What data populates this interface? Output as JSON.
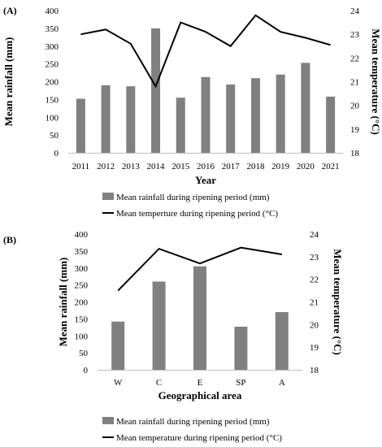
{
  "chart_data": [
    {
      "panel_label": "(A)",
      "type": "bar+line",
      "xlabel": "Year",
      "ylabel_left": "Mean rainfall (mm)",
      "ylabel_right": "Mean temperature (°C)",
      "categories": [
        "2011",
        "2012",
        "2013",
        "2014",
        "2015",
        "2016",
        "2017",
        "2018",
        "2019",
        "2020",
        "2021"
      ],
      "ylim_left": [
        0,
        400
      ],
      "yticks_left": [
        0,
        50,
        100,
        150,
        200,
        250,
        300,
        350,
        400
      ],
      "ylim_right": [
        18,
        24
      ],
      "yticks_right": [
        18,
        19,
        20,
        21,
        22,
        23,
        24
      ],
      "series": [
        {
          "name": "Mean rainfall during ripening period (mm)",
          "kind": "bar",
          "axis": "left",
          "color": "#808080",
          "values": [
            152,
            190,
            187,
            350,
            155,
            213,
            192,
            210,
            220,
            253,
            158
          ]
        },
        {
          "name": "Mean temperture during ripening period (°C)",
          "kind": "line",
          "axis": "right",
          "color": "#000000",
          "values": [
            23.0,
            23.2,
            22.6,
            20.8,
            23.5,
            23.1,
            22.5,
            23.8,
            23.1,
            22.85,
            22.55
          ]
        }
      ],
      "grid": false,
      "legend_placement": "bottom"
    },
    {
      "panel_label": "(B)",
      "type": "bar+line",
      "xlabel": "Geographical area",
      "ylabel_left": "Mean rainfall (mm)",
      "ylabel_right": "Mean temperature (°C)",
      "categories": [
        "W",
        "C",
        "E",
        "SP",
        "A"
      ],
      "ylim_left": [
        0,
        400
      ],
      "yticks_left": [
        0,
        50,
        100,
        150,
        200,
        250,
        300,
        350,
        400
      ],
      "ylim_right": [
        18,
        24
      ],
      "yticks_right": [
        18,
        19,
        20,
        21,
        22,
        23,
        24
      ],
      "series": [
        {
          "name": "Mean rainfall during ripening period (mm)",
          "kind": "bar",
          "axis": "left",
          "color": "#808080",
          "values": [
            142,
            260,
            305,
            127,
            170
          ]
        },
        {
          "name": "Mean temperature during  ripening period (°C)",
          "kind": "line",
          "axis": "right",
          "color": "#000000",
          "values": [
            21.5,
            23.35,
            22.7,
            23.4,
            23.1
          ]
        }
      ],
      "grid": false,
      "legend_placement": "bottom"
    }
  ]
}
